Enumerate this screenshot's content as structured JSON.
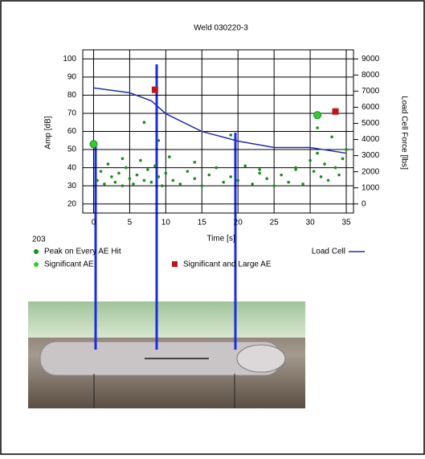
{
  "chart_data": {
    "type": "scatter",
    "title": "Weld 030220-3",
    "note": "203",
    "xlabel": "Time [s]",
    "ylabel": "Amp [dB]",
    "y2label": "Load Cell Force [lbs]",
    "xlim": [
      -1.5,
      36
    ],
    "xticks": [
      0,
      5,
      10,
      15,
      20,
      25,
      30,
      35
    ],
    "ylim": [
      15,
      105
    ],
    "yticks": [
      20,
      30,
      40,
      50,
      60,
      70,
      80,
      90,
      100
    ],
    "y2lim": [
      -562.5,
      9562.5
    ],
    "y2ticks": [
      0,
      1000,
      2000,
      3000,
      4000,
      5000,
      6000,
      7000,
      8000,
      9000
    ],
    "grid": true,
    "series": [
      {
        "name": "Peak on Every AE Hit",
        "color": "#1a8a1a",
        "marker": "dot",
        "x": [
          0.5,
          1,
          1.5,
          2,
          2.5,
          3,
          3.5,
          4,
          4.5,
          5,
          5.5,
          6,
          6.5,
          7,
          7.5,
          8,
          8.5,
          9,
          9.5,
          10,
          10.5,
          11,
          12,
          13,
          14,
          15,
          16,
          17,
          18,
          19,
          20,
          21,
          22,
          23,
          24,
          25,
          26,
          27,
          28,
          29,
          30,
          30.5,
          31,
          31.5,
          32,
          32.5,
          33,
          33.5,
          34,
          34.5,
          35,
          7,
          9,
          19,
          31,
          28,
          14,
          4,
          23
        ],
        "values": [
          33,
          38,
          31,
          42,
          35,
          32,
          37,
          30,
          40,
          34,
          31,
          36,
          44,
          33,
          39,
          32,
          41,
          35,
          30,
          37,
          46,
          33,
          31,
          38,
          34,
          30,
          36,
          40,
          32,
          35,
          33,
          41,
          31,
          37,
          34,
          30,
          36,
          32,
          39,
          31,
          44,
          38,
          48,
          35,
          42,
          33,
          57,
          40,
          36,
          45,
          50,
          65,
          55,
          58,
          62,
          40,
          43,
          45,
          39
        ]
      },
      {
        "name": "Significant AE",
        "color": "#33cc33",
        "marker": "circle",
        "x": [
          0,
          31
        ],
        "values": [
          53,
          69
        ]
      },
      {
        "name": "Significant and Large AE",
        "color": "#c0141e",
        "marker": "square",
        "x": [
          8.5,
          33.5
        ],
        "values": [
          83,
          71
        ]
      },
      {
        "name": "Load Cell",
        "color": "#1f2fa8",
        "marker": "line",
        "axis": "y2",
        "x": [
          0,
          5,
          8,
          10,
          15,
          20,
          25,
          30,
          35
        ],
        "values": [
          7200,
          6900,
          6400,
          5600,
          4500,
          3900,
          3500,
          3500,
          3150
        ]
      }
    ]
  }
}
